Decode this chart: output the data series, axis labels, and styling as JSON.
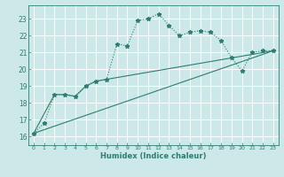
{
  "xlabel": "Humidex (Indice chaleur)",
  "xlim": [
    -0.5,
    23.5
  ],
  "ylim": [
    15.5,
    23.8
  ],
  "yticks": [
    16,
    17,
    18,
    19,
    20,
    21,
    22,
    23
  ],
  "xticks": [
    0,
    1,
    2,
    3,
    4,
    5,
    6,
    7,
    8,
    9,
    10,
    11,
    12,
    13,
    14,
    15,
    16,
    17,
    18,
    19,
    20,
    21,
    22,
    23
  ],
  "bg_color": "#cce8e8",
  "grid_color": "#ffffff",
  "line_color": "#2e7d70",
  "series1_x": [
    0,
    1,
    2,
    3,
    4,
    5,
    6,
    7,
    8,
    9,
    10,
    11,
    12,
    13,
    14,
    15,
    16,
    17,
    18,
    19,
    20,
    21,
    22,
    23
  ],
  "series1_y": [
    16.2,
    16.8,
    18.5,
    18.5,
    18.4,
    19.0,
    19.3,
    19.4,
    21.5,
    21.4,
    22.9,
    23.0,
    23.3,
    22.6,
    22.0,
    22.2,
    22.3,
    22.2,
    21.7,
    20.7,
    19.9,
    21.0,
    21.1,
    21.1
  ],
  "series2_x": [
    0,
    2,
    3,
    4,
    5,
    6,
    23
  ],
  "series2_y": [
    16.2,
    18.5,
    18.5,
    18.4,
    19.0,
    19.3,
    21.1
  ],
  "series3_x": [
    0,
    23
  ],
  "series3_y": [
    16.2,
    21.1
  ]
}
